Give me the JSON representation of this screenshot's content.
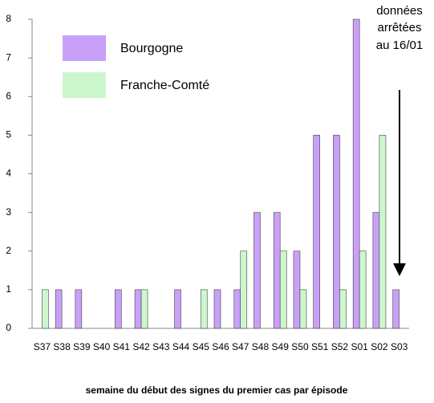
{
  "chart_data": {
    "type": "bar",
    "categories": [
      "S37",
      "S38",
      "S39",
      "S40",
      "S41",
      "S42",
      "S43",
      "S44",
      "S45",
      "S46",
      "S47",
      "S48",
      "S49",
      "S50",
      "S51",
      "S52",
      "S01",
      "S02",
      "S03"
    ],
    "series": [
      {
        "name": "Bourgogne",
        "color": "#c9a0f7",
        "values": [
          0,
          1,
          1,
          0,
          1,
          1,
          0,
          1,
          0,
          1,
          1,
          3,
          3,
          2,
          5,
          5,
          8,
          3,
          1
        ]
      },
      {
        "name": "Franche-Comté",
        "color": "#ccf7cc",
        "values": [
          1,
          0,
          0,
          0,
          0,
          1,
          0,
          0,
          1,
          0,
          2,
          0,
          2,
          1,
          0,
          1,
          2,
          5,
          0
        ]
      }
    ],
    "ylim": [
      0,
      8
    ],
    "yticks": [
      0,
      1,
      2,
      3,
      4,
      5,
      6,
      7,
      8
    ],
    "grid": false,
    "x_label": "semaine du début des signes du premier cas par épisode",
    "annotation": [
      "données",
      "arrêtées",
      "au 16/01"
    ],
    "legend": "top-left"
  }
}
